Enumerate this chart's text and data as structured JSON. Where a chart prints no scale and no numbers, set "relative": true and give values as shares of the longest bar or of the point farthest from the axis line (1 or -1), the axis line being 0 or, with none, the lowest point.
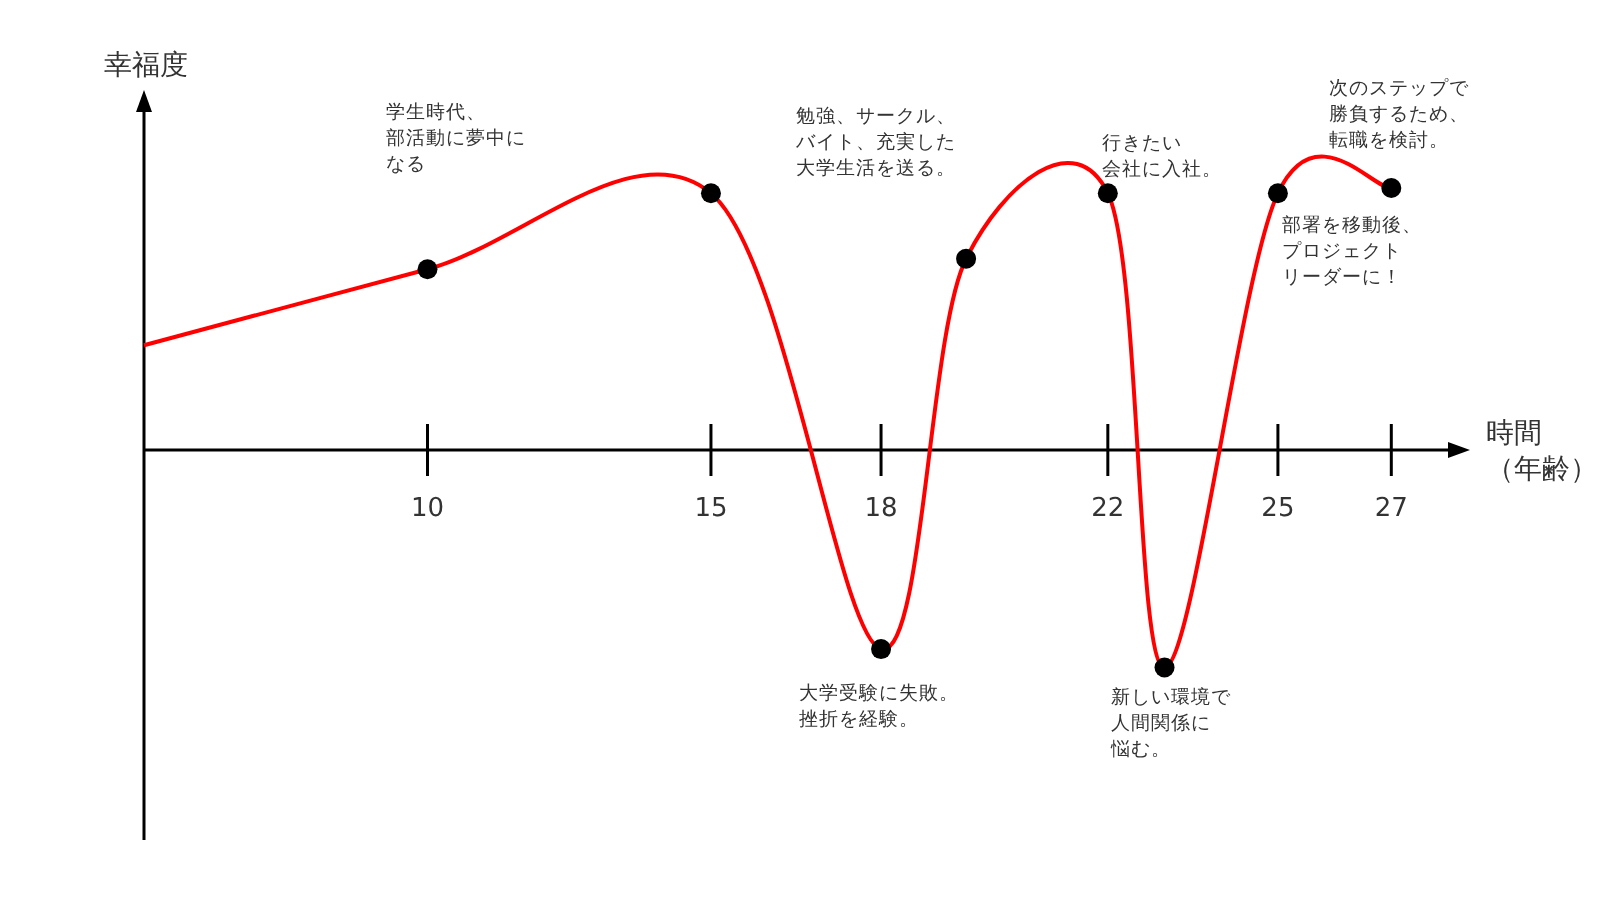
{
  "chart_data": {
    "type": "line",
    "relative": true,
    "ylabel": "幸福度",
    "xlabel": "時間（年齢）",
    "xlim": [
      5,
      28
    ],
    "xticks": [
      10,
      15,
      18,
      22,
      25,
      27
    ],
    "tick_labels": "x",
    "series": [
      {
        "type": "line",
        "color": "#ff0000",
        "marker": "none",
        "x": [
          5,
          10,
          15,
          18,
          19.5,
          22,
          23,
          25,
          27
        ],
        "values": [
          0.4,
          0.69,
          0.98,
          -0.76,
          0.73,
          0.98,
          -0.83,
          0.98,
          1
        ]
      },
      {
        "type": "scatter",
        "color": "#000000",
        "marker": "circle",
        "x": [
          10,
          15,
          18,
          19.5,
          22,
          23,
          25,
          27
        ],
        "values": [
          0.69,
          0.98,
          -0.76,
          0.73,
          0.98,
          -0.83,
          0.98,
          1
        ]
      }
    ],
    "annotations": [
      "学生時代、部活動に夢中になる",
      {
        "text": "大学受験に失敗。挫折を経験。",
        "x": 18,
        "y": -0.76
      },
      "勉強、サークル、バイト、充実した大学生活を送る。",
      {
        "text": "行きたい会社に入社。",
        "x": 22,
        "y": 0.98
      },
      {
        "text": "新しい環境で人間関係に悩む。",
        "x": 23,
        "y": -0.83
      },
      {
        "text": "部署を移動後、プロジェクトリーダーに！",
        "x": 25,
        "y": 0.98
      },
      {
        "text": "次のステップで勝負するため、転職を検討。",
        "x": 27,
        "y": 1
      }
    ]
  }
}
